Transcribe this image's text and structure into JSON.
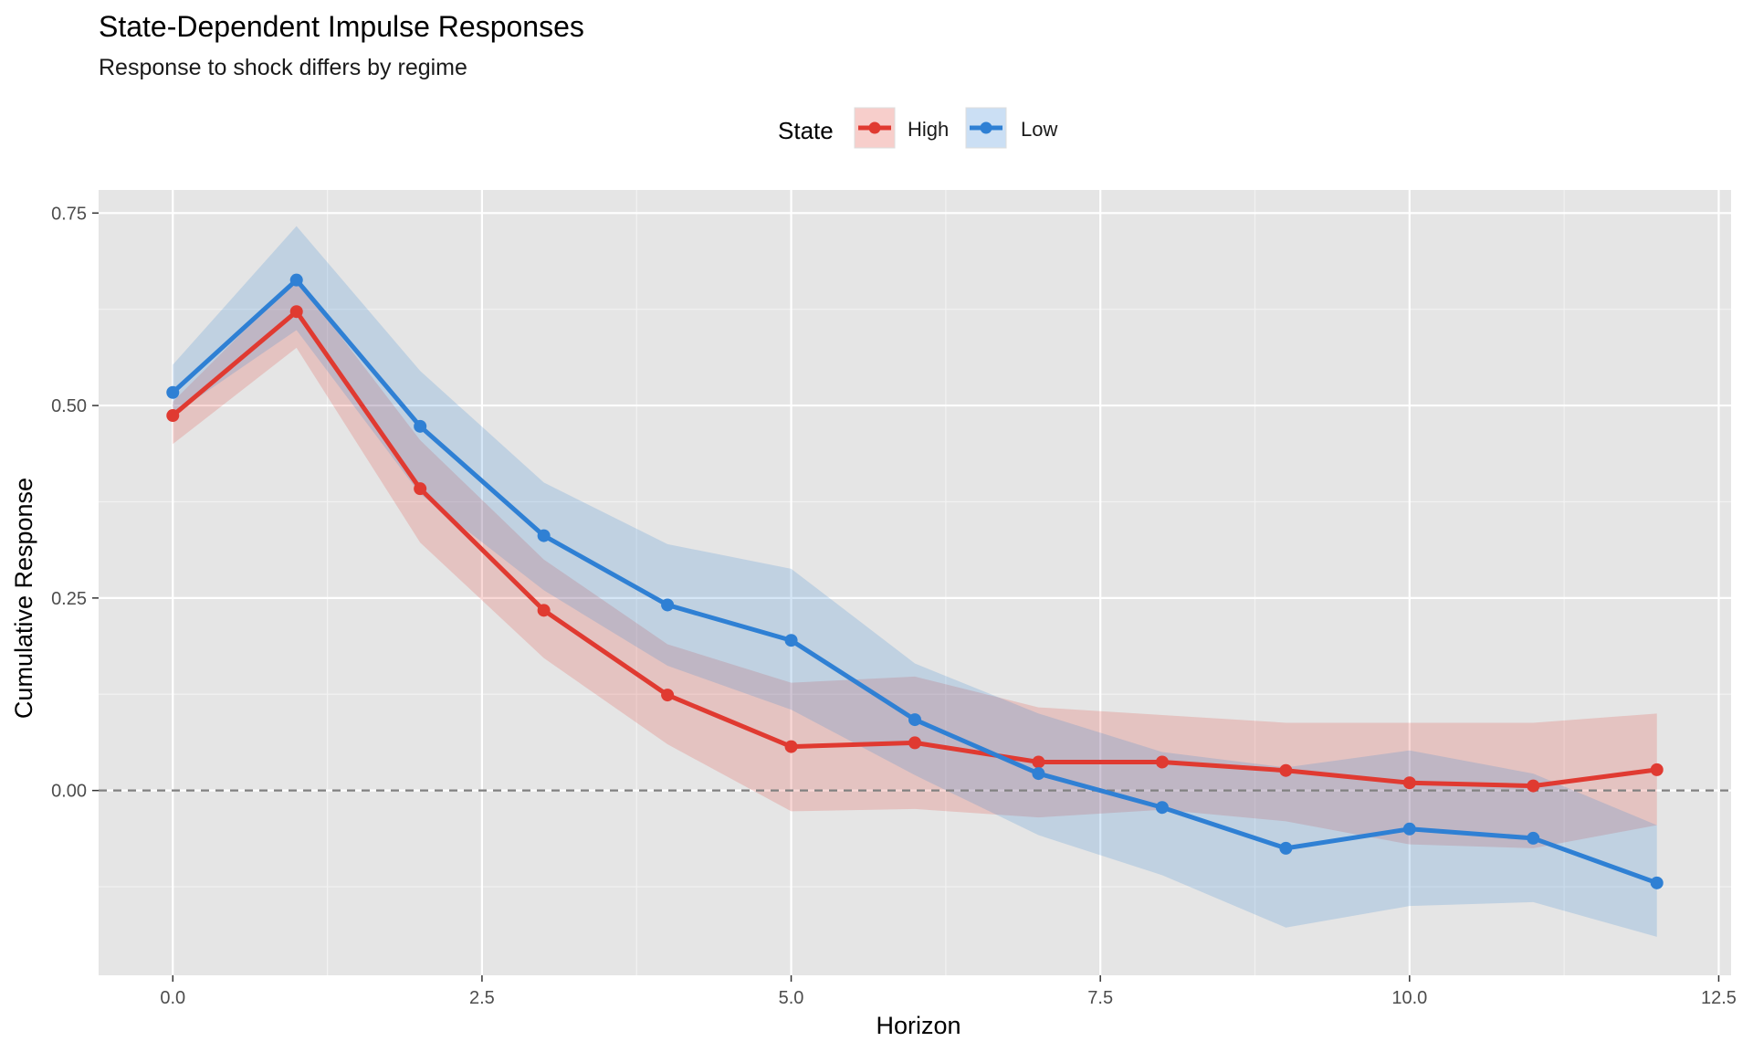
{
  "chart_data": {
    "type": "line",
    "title": "State-Dependent Impulse Responses",
    "subtitle": "Response to shock differs by regime",
    "xlabel": "Horizon",
    "ylabel": "Cumulative Response",
    "xlim": [
      -0.6,
      12.6
    ],
    "ylim": [
      -0.24,
      0.78
    ],
    "xticks": [
      0,
      2.5,
      5,
      7.5,
      10,
      12.5
    ],
    "xtick_labels": [
      "0.0",
      "2.5",
      "5.0",
      "7.5",
      "10.0",
      "12.5"
    ],
    "yticks": [
      0,
      0.25,
      0.5,
      0.75
    ],
    "ytick_labels": [
      "0.00",
      "0.25",
      "0.50",
      "0.75"
    ],
    "reference_line": {
      "y": 0,
      "style": "dashed"
    },
    "legend": {
      "title": "State",
      "position": "top"
    },
    "x": [
      0,
      1,
      2,
      3,
      4,
      5,
      6,
      7,
      8,
      9,
      10,
      11,
      12
    ],
    "series": [
      {
        "name": "High",
        "color": "#e03a31",
        "values": [
          0.487,
          0.622,
          0.392,
          0.234,
          0.124,
          0.057,
          0.062,
          0.037,
          0.037,
          0.026,
          0.01,
          0.006,
          0.027
        ],
        "lower": [
          0.45,
          0.575,
          0.322,
          0.172,
          0.06,
          -0.027,
          -0.024,
          -0.035,
          -0.025,
          -0.04,
          -0.07,
          -0.075,
          -0.045
        ],
        "upper": [
          0.505,
          0.665,
          0.455,
          0.3,
          0.19,
          0.14,
          0.148,
          0.108,
          0.098,
          0.088,
          0.088,
          0.088,
          0.1
        ]
      },
      {
        "name": "Low",
        "color": "#2f80d4",
        "values": [
          0.517,
          0.663,
          0.473,
          0.331,
          0.241,
          0.195,
          0.092,
          0.022,
          -0.022,
          -0.075,
          -0.05,
          -0.062,
          -0.12
        ],
        "lower": [
          0.488,
          0.598,
          0.385,
          0.26,
          0.162,
          0.105,
          0.02,
          -0.058,
          -0.11,
          -0.178,
          -0.15,
          -0.145,
          -0.19
        ],
        "upper": [
          0.553,
          0.733,
          0.545,
          0.4,
          0.32,
          0.288,
          0.165,
          0.1,
          0.05,
          0.03,
          0.052,
          0.022,
          -0.045
        ]
      }
    ]
  }
}
